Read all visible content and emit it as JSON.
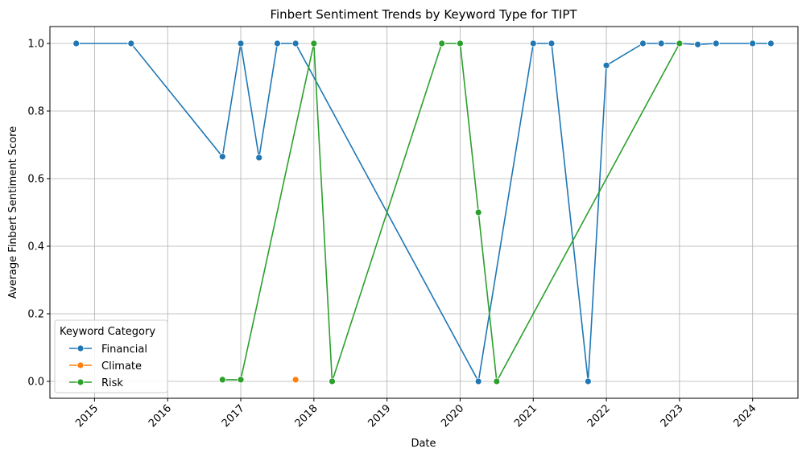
{
  "chart_data": {
    "type": "line",
    "title": "Finbert Sentiment Trends by Keyword Type for TIPT",
    "xlabel": "Date",
    "ylabel": "Average Finbert Sentiment Score",
    "xlim": [
      2014.39,
      2024.62
    ],
    "ylim": [
      -0.05,
      1.05
    ],
    "x_ticks": [
      2015,
      2016,
      2017,
      2018,
      2019,
      2020,
      2021,
      2022,
      2023,
      2024
    ],
    "y_ticks": [
      0.0,
      0.2,
      0.4,
      0.6,
      0.8,
      1.0
    ],
    "grid": true,
    "legend": {
      "title": "Keyword Category",
      "position": "lower-left"
    },
    "series": [
      {
        "name": "Financial",
        "color": "#1f77b4",
        "x": [
          2014.75,
          2015.5,
          2016.75,
          2017.0,
          2017.25,
          2017.5,
          2017.75,
          2020.25,
          2021.0,
          2021.25,
          2021.75,
          2022.0,
          2022.5,
          2022.75,
          2023.0,
          2023.25,
          2023.5,
          2024.0,
          2024.25
        ],
        "y": [
          1.0,
          1.0,
          0.665,
          1.0,
          0.662,
          1.0,
          1.0,
          0.0,
          1.0,
          1.0,
          0.0,
          0.935,
          1.0,
          1.0,
          1.0,
          0.997,
          1.0,
          1.0,
          1.0
        ]
      },
      {
        "name": "Climate",
        "color": "#ff7f0e",
        "x": [
          2017.75
        ],
        "y": [
          0.005
        ]
      },
      {
        "name": "Risk",
        "color": "#2ca02c",
        "x": [
          2016.75,
          2017.0,
          2018.0,
          2018.25,
          2019.75,
          2020.0,
          2020.25,
          2020.5,
          2023.0
        ],
        "y": [
          0.005,
          0.005,
          1.0,
          0.0,
          1.0,
          1.0,
          0.5,
          0.0,
          1.0
        ]
      }
    ]
  }
}
